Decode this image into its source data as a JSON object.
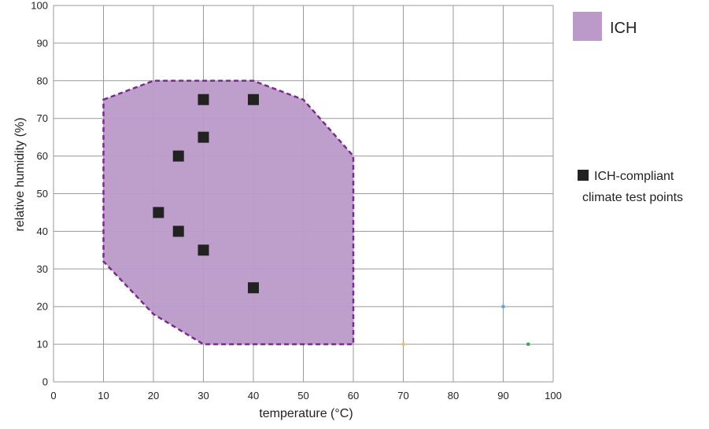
{
  "chart_data": {
    "type": "scatter",
    "xlabel": "temperature (°C)",
    "ylabel": "relative humidity (%)",
    "xlim": [
      0,
      100
    ],
    "ylim": [
      0,
      100
    ],
    "xticks": [
      0,
      10,
      20,
      30,
      40,
      50,
      60,
      70,
      80,
      90,
      100
    ],
    "yticks": [
      0,
      10,
      20,
      30,
      40,
      50,
      60,
      70,
      80,
      90,
      100
    ],
    "grid": true,
    "legend_position": "right",
    "region": {
      "name": "ICH",
      "fill_color": "#bb99c8",
      "border_color": "#7b2a8e",
      "vertices": [
        {
          "x": 10,
          "y": 75
        },
        {
          "x": 20,
          "y": 80
        },
        {
          "x": 40,
          "y": 80
        },
        {
          "x": 50,
          "y": 75
        },
        {
          "x": 60,
          "y": 60
        },
        {
          "x": 60,
          "y": 10
        },
        {
          "x": 30,
          "y": 10
        },
        {
          "x": 20,
          "y": 18
        },
        {
          "x": 10,
          "y": 32
        }
      ]
    },
    "series": [
      {
        "name": "ICH-compliant climate test points",
        "legend_lines": [
          "ICH-compliant",
          "climate test points"
        ],
        "color": "#222222",
        "points": [
          {
            "x": 30,
            "y": 75
          },
          {
            "x": 40,
            "y": 75
          },
          {
            "x": 30,
            "y": 65
          },
          {
            "x": 25,
            "y": 60
          },
          {
            "x": 21,
            "y": 45
          },
          {
            "x": 25,
            "y": 40
          },
          {
            "x": 30,
            "y": 35
          },
          {
            "x": 40,
            "y": 25
          }
        ]
      }
    ],
    "minor_markers": [
      {
        "x": 70,
        "y": 10,
        "color": "#f2c36b"
      },
      {
        "x": 90,
        "y": 20,
        "color": "#5aa6e0"
      },
      {
        "x": 95,
        "y": 10,
        "color": "#3aa84a"
      }
    ]
  }
}
